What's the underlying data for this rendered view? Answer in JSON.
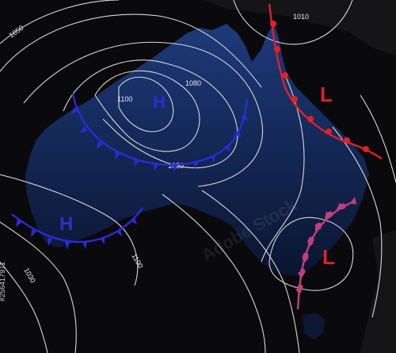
{
  "map": {
    "colors": {
      "background": "#0a0a0c",
      "land_top": "#1d3a7a",
      "land_bottom": "#0a1530",
      "isobar": "#d8d8d8",
      "high": "#2b2bd6",
      "low": "#e0202a",
      "occluded_front": "#c0407a"
    },
    "isobar_labels": [
      "1050",
      "1010",
      "1080",
      "1100",
      "1050",
      "1100",
      "1030"
    ],
    "pressure_centers": {
      "high_1": "H",
      "high_2": "H",
      "low_1": "L",
      "low_2": "L"
    },
    "front_types": [
      "cold-front-blue",
      "cold-front-blue",
      "warm-front-red",
      "occluded-front-magenta"
    ],
    "watermark": "Adobe Stock",
    "stock_id": "#256417971"
  }
}
